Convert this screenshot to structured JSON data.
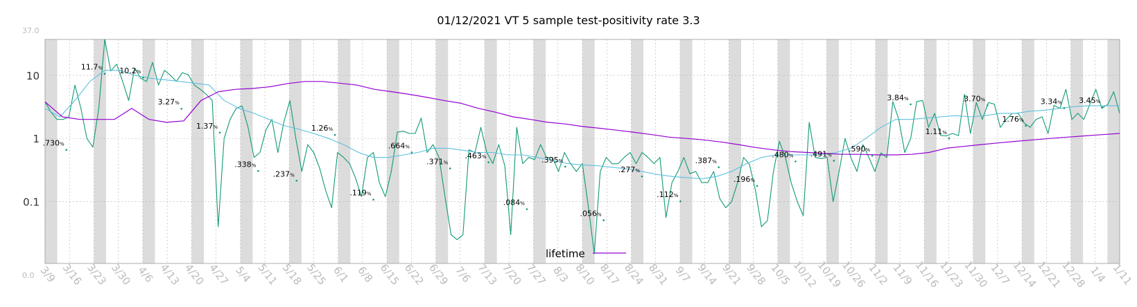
{
  "chart_data": {
    "type": "line",
    "title": "01/12/2021 VT 5 sample test-positivity rate 3.3",
    "yscale": "log",
    "ylim": [
      0.0,
      37.0
    ],
    "y_axis": {
      "top_label": "37.0",
      "bottom_label": "0.0",
      "major_ticks": [
        {
          "value": 10,
          "label": "10"
        },
        {
          "value": 1,
          "label": "1"
        },
        {
          "value": 0.1,
          "label": "0.1"
        }
      ]
    },
    "x_tick_labels": [
      "3/9",
      "3/16",
      "3/23",
      "3/30",
      "4/6",
      "4/13",
      "4/20",
      "4/27",
      "5/4",
      "5/11",
      "5/18",
      "5/25",
      "6/1",
      "6/8",
      "6/15",
      "6/22",
      "6/29",
      "7/6",
      "7/13",
      "7/20",
      "7/27",
      "8/3",
      "8/10",
      "8/17",
      "8/24",
      "8/31",
      "9/7",
      "9/14",
      "9/21",
      "9/28",
      "10/5",
      "10/12",
      "10/19",
      "10/26",
      "11/2",
      "11/9",
      "11/16",
      "11/23",
      "11/30",
      "12/7",
      "12/14",
      "12/21",
      "12/28",
      "1/4",
      "1/11"
    ],
    "grid": true,
    "weekend_shading": true,
    "legend": {
      "position": "bottom-center",
      "entries": [
        {
          "name": "lifetime",
          "color": "#9400d3"
        }
      ]
    },
    "colors": {
      "daily": "#119977",
      "smoothed": "#5bc0de",
      "lifetime": "#9400d3",
      "shade": "#dcdcdc"
    },
    "series": [
      {
        "name": "daily",
        "values": [
          3.8,
          2.6,
          2.0,
          2.0,
          2.2,
          7.0,
          3.0,
          1.0,
          0.73,
          3.0,
          37.0,
          11.7,
          15.0,
          8.0,
          4.0,
          13.0,
          9.0,
          8.0,
          16.0,
          7.0,
          12.0,
          10.0,
          8.0,
          11.0,
          10.2,
          7.0,
          6.0,
          5.0,
          4.0,
          0.04,
          1.0,
          2.0,
          3.0,
          3.27,
          1.5,
          0.5,
          0.6,
          1.37,
          2.0,
          0.6,
          1.8,
          4.0,
          1.0,
          0.3,
          0.8,
          0.6,
          0.338,
          0.15,
          0.08,
          0.6,
          0.5,
          0.4,
          0.237,
          0.12,
          0.5,
          0.6,
          0.2,
          0.12,
          0.3,
          1.26,
          1.3,
          1.2,
          1.2,
          2.1,
          0.6,
          0.8,
          0.5,
          0.119,
          0.03,
          0.025,
          0.03,
          0.664,
          0.6,
          1.5,
          0.6,
          0.4,
          0.8,
          0.371,
          0.03,
          1.5,
          0.4,
          0.5,
          0.463,
          0.8,
          0.5,
          0.5,
          0.3,
          0.6,
          0.4,
          0.3,
          0.4,
          0.084,
          0.015,
          0.3,
          0.5,
          0.395,
          0.4,
          0.5,
          0.6,
          0.4,
          0.6,
          0.5,
          0.4,
          0.5,
          0.056,
          0.2,
          0.3,
          0.5,
          0.277,
          0.3,
          0.2,
          0.2,
          0.3,
          0.112,
          0.08,
          0.1,
          0.2,
          0.5,
          0.387,
          0.15,
          0.04,
          0.05,
          0.3,
          0.9,
          0.5,
          0.196,
          0.1,
          0.06,
          1.8,
          0.5,
          0.48,
          0.5,
          0.1,
          0.3,
          1.0,
          0.491,
          0.3,
          0.8,
          0.5,
          0.3,
          0.59,
          0.5,
          3.84,
          2.0,
          0.6,
          1.0,
          3.84,
          4.0,
          1.5,
          2.5,
          1.11,
          1.1,
          1.2,
          1.11,
          5.0,
          1.2,
          3.7,
          2.0,
          3.7,
          3.5,
          1.5,
          2.0,
          2.5,
          2.5,
          1.76,
          1.5,
          2.0,
          2.2,
          1.2,
          3.34,
          3.0,
          6.0,
          2.0,
          2.5,
          2.0,
          3.45,
          6.0,
          3.0,
          3.45,
          5.5,
          2.5
        ]
      },
      {
        "name": "smoothed",
        "values": [
          3.0,
          2.2,
          4.0,
          8.0,
          12.0,
          12.0,
          10.0,
          9.0,
          8.5,
          8.0,
          7.5,
          7.0,
          4.0,
          3.0,
          2.5,
          2.0,
          1.6,
          1.4,
          1.2,
          1.0,
          0.8,
          0.6,
          0.5,
          0.5,
          0.55,
          0.6,
          0.7,
          0.7,
          0.65,
          0.6,
          0.6,
          0.55,
          0.55,
          0.5,
          0.45,
          0.4,
          0.38,
          0.37,
          0.35,
          0.33,
          0.3,
          0.27,
          0.25,
          0.24,
          0.23,
          0.25,
          0.3,
          0.4,
          0.5,
          0.55,
          0.55,
          0.55,
          0.55,
          0.6,
          0.7,
          1.0,
          1.5,
          2.0,
          2.0,
          2.1,
          2.2,
          2.3,
          2.2,
          2.3,
          2.5,
          2.5,
          2.7,
          2.8,
          3.0,
          3.2,
          3.3,
          3.3,
          3.3
        ]
      },
      {
        "name": "lifetime",
        "values": [
          3.8,
          2.2,
          2.0,
          2.0,
          2.0,
          3.0,
          2.0,
          1.8,
          1.9,
          4.0,
          5.5,
          6.0,
          6.2,
          6.6,
          7.4,
          8.0,
          8.0,
          7.5,
          7.0,
          6.0,
          5.5,
          5.0,
          4.5,
          4.0,
          3.6,
          3.0,
          2.6,
          2.2,
          2.0,
          1.8,
          1.7,
          1.55,
          1.45,
          1.35,
          1.25,
          1.15,
          1.05,
          1.0,
          0.95,
          0.88,
          0.8,
          0.72,
          0.66,
          0.62,
          0.6,
          0.58,
          0.56,
          0.56,
          0.55,
          0.55,
          0.56,
          0.6,
          0.7,
          0.75,
          0.8,
          0.85,
          0.9,
          0.95,
          1.0,
          1.05,
          1.1,
          1.15,
          1.2
        ]
      }
    ],
    "annotations": [
      ".730",
      "11.7",
      "10.2",
      "3.27",
      "1.37",
      ".338",
      ".237",
      "1.26",
      ".119",
      ".664",
      ".371",
      ".463",
      ".084",
      ".395",
      ".056",
      ".277",
      ".112",
      ".387",
      ".196",
      ".480",
      ".491",
      ".590",
      "3.84",
      "1.11",
      "3.70",
      "1.76",
      "3.34",
      "3.45"
    ],
    "annotation_unit": "%"
  }
}
